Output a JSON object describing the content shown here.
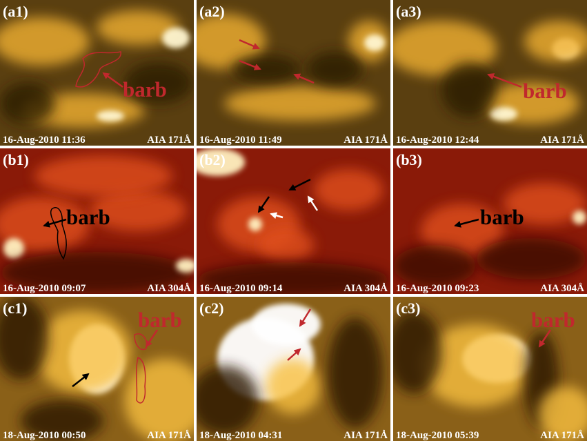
{
  "panels": [
    {
      "label": "(a1)",
      "timestamp": "16-Aug-2010 11:36",
      "channel": "AIA 171Å",
      "annotation": "barb"
    },
    {
      "label": "(a2)",
      "timestamp": "16-Aug-2010 11:49",
      "channel": "AIA 171Å"
    },
    {
      "label": "(a3)",
      "timestamp": "16-Aug-2010 12:44",
      "channel": "AIA 171Å",
      "annotation": "barb"
    },
    {
      "label": "(b1)",
      "timestamp": "16-Aug-2010 09:07",
      "channel": "AIA 304Å",
      "annotation": "barb"
    },
    {
      "label": "(b2)",
      "timestamp": "16-Aug-2010 09:14",
      "channel": "AIA 304Å"
    },
    {
      "label": "(b3)",
      "timestamp": "16-Aug-2010 09:23",
      "channel": "AIA 304Å",
      "annotation": "barb"
    },
    {
      "label": "(c1)",
      "timestamp": "18-Aug-2010 00:50",
      "channel": "AIA 171Å",
      "annotation": "barb"
    },
    {
      "label": "(c2)",
      "timestamp": "18-Aug-2010 04:31",
      "channel": "AIA 171Å"
    },
    {
      "label": "(c3)",
      "timestamp": "18-Aug-2010 05:39",
      "channel": "AIA 171Å",
      "annotation": "barb"
    }
  ]
}
